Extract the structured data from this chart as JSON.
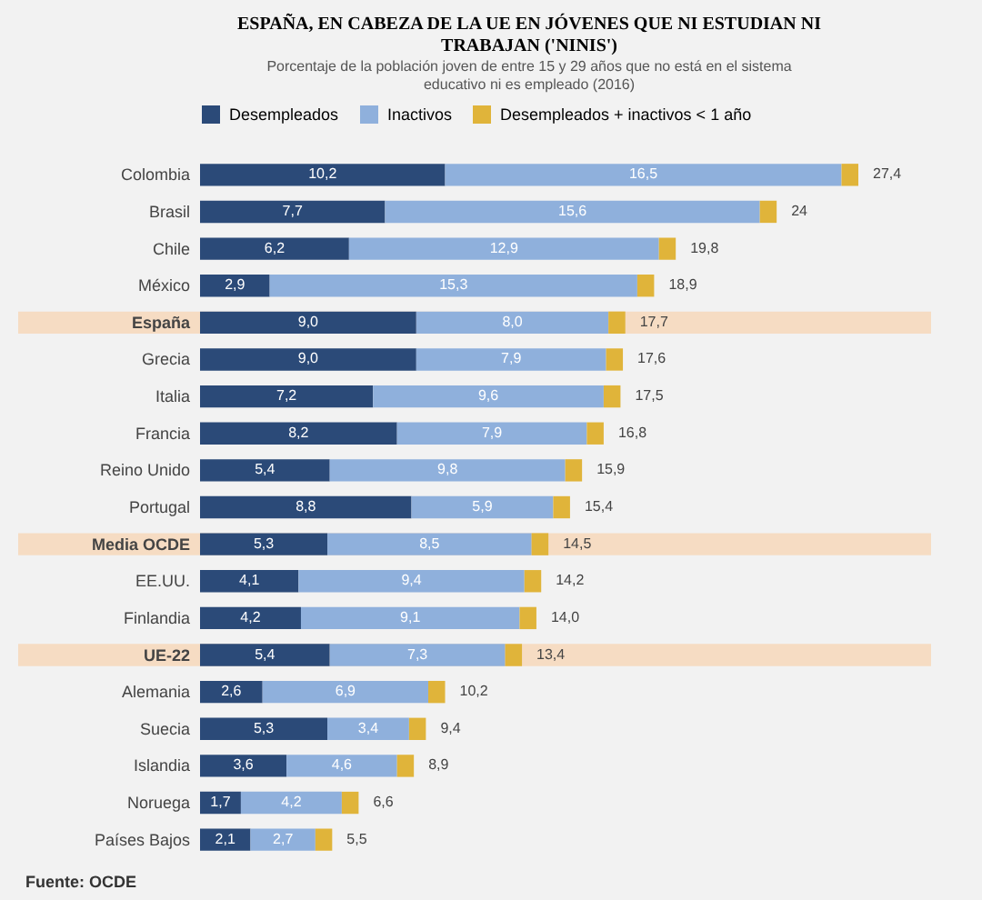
{
  "chart_data": {
    "type": "bar",
    "orientation": "horizontal",
    "stacked": true,
    "title": "ESPAÑA, EN CABEZA DE LA UE EN JÓVENES QUE NI ESTUDIAN NI TRABAJAN ('NINIS')",
    "subtitle": "Porcentaje de la población joven de entre 15 y 29 años que no está en el sistema educativo ni es empleado (2016)",
    "categories": [
      "Colombia",
      "Brasil",
      "Chile",
      "México",
      "España",
      "Grecia",
      "Italia",
      "Francia",
      "Reino Unido",
      "Portugal",
      "Media OCDE",
      "EE.UU.",
      "Finlandia",
      "UE-22",
      "Alemania",
      "Suecia",
      "Islandia",
      "Noruega",
      "Países Bajos"
    ],
    "series": [
      {
        "name": "Desempleados",
        "color": "#2b4a78",
        "values": [
          10.2,
          7.7,
          6.2,
          2.9,
          9.0,
          9.0,
          7.2,
          8.2,
          5.4,
          8.8,
          5.3,
          4.1,
          4.2,
          5.4,
          2.6,
          5.3,
          3.6,
          1.7,
          2.1
        ],
        "value_labels": [
          "10,2",
          "7,7",
          "6,2",
          "2,9",
          "9,0",
          "9,0",
          "7,2",
          "8,2",
          "5,4",
          "8,8",
          "5,3",
          "4,1",
          "4,2",
          "5,4",
          "2,6",
          "5,3",
          "3,6",
          "1,7",
          "2,1"
        ]
      },
      {
        "name": "Inactivos",
        "color": "#8fb0dc",
        "values": [
          16.5,
          15.6,
          12.9,
          15.3,
          8.0,
          7.9,
          9.6,
          7.9,
          9.8,
          5.9,
          8.5,
          9.4,
          9.1,
          7.3,
          6.9,
          3.4,
          4.6,
          4.2,
          2.7
        ],
        "value_labels": [
          "16,5",
          "15,6",
          "12,9",
          "15,3",
          "8,0",
          "7,9",
          "9,6",
          "7,9",
          "9,8",
          "5,9",
          "8,5",
          "9,4",
          "9,1",
          "7,3",
          "6,9",
          "3,4",
          "4,6",
          "4,2",
          "2,7"
        ]
      },
      {
        "name": "Desempleados + inactivos < 1 año",
        "color": "#e0b43a",
        "values": [
          0.7,
          0.7,
          0.7,
          0.7,
          0.7,
          0.7,
          0.7,
          0.7,
          0.7,
          0.7,
          0.7,
          0.7,
          0.7,
          0.7,
          0.7,
          0.7,
          0.7,
          0.7,
          0.7
        ]
      }
    ],
    "totals": [
      "27,4",
      "24",
      "19,8",
      "18,9",
      "17,7",
      "17,6",
      "17,5",
      "16,8",
      "15,9",
      "15,4",
      "14,5",
      "14,2",
      "14,0",
      "13,4",
      "10,2",
      "9,4",
      "8,9",
      "6,6",
      "5,5"
    ],
    "bands": [
      {
        "axis": "y",
        "from": "España",
        "to": "España",
        "color": "#f6dcc3"
      },
      {
        "axis": "y",
        "from": "Media OCDE",
        "to": "Media OCDE",
        "color": "#f6dcc3"
      },
      {
        "axis": "y",
        "from": "UE-22",
        "to": "UE-22",
        "color": "#f6dcc3"
      }
    ],
    "legend": "top",
    "annotations": [
      "Fuente: OCDE"
    ]
  }
}
